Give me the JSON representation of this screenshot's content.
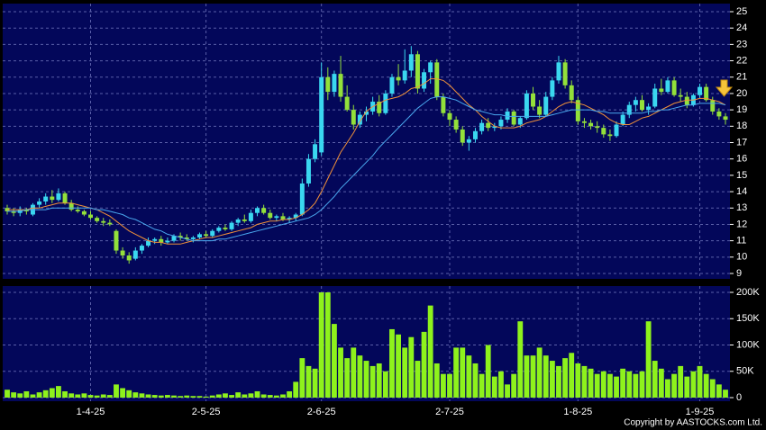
{
  "chart_data": [
    {
      "type": "candlestick",
      "up_color": "#3ad7f0",
      "down_color": "#93e03a",
      "ylim": [
        9,
        25
      ],
      "yticks": [
        9,
        10,
        11,
        12,
        13,
        14,
        15,
        16,
        17,
        18,
        19,
        20,
        21,
        22,
        23,
        24,
        25
      ],
      "grid": true,
      "xticks": [
        {
          "value": 13,
          "label": "1-4-25"
        },
        {
          "value": 31,
          "label": "2-5-25"
        },
        {
          "value": 49,
          "label": "2-6-25"
        },
        {
          "value": 69,
          "label": "2-7-25"
        },
        {
          "value": 89,
          "label": "1-8-25"
        },
        {
          "value": 108,
          "label": "1-9-25"
        }
      ],
      "ohlc": [
        [
          13.0,
          13.2,
          12.6,
          12.8
        ],
        [
          12.8,
          13.0,
          12.5,
          12.7
        ],
        [
          12.7,
          13.1,
          12.5,
          12.9
        ],
        [
          12.9,
          13.0,
          12.6,
          12.8
        ],
        [
          12.6,
          13.3,
          12.5,
          13.2
        ],
        [
          13.2,
          13.6,
          13.0,
          13.4
        ],
        [
          13.4,
          13.9,
          13.2,
          13.7
        ],
        [
          13.7,
          14.1,
          13.3,
          13.5
        ],
        [
          13.5,
          14.2,
          13.4,
          13.9
        ],
        [
          13.9,
          14.0,
          13.2,
          13.3
        ],
        [
          13.3,
          13.5,
          12.8,
          12.9
        ],
        [
          12.9,
          13.1,
          12.7,
          12.8
        ],
        [
          12.8,
          12.9,
          12.5,
          12.6
        ],
        [
          12.6,
          12.8,
          12.3,
          12.4
        ],
        [
          12.4,
          12.5,
          12.1,
          12.2
        ],
        [
          12.2,
          12.4,
          11.9,
          12.1
        ],
        [
          12.1,
          12.3,
          11.9,
          12.0
        ],
        [
          11.6,
          11.7,
          10.2,
          10.4
        ],
        [
          10.4,
          10.6,
          9.9,
          10.1
        ],
        [
          10.1,
          10.3,
          9.6,
          9.8
        ],
        [
          9.9,
          10.6,
          9.8,
          10.4
        ],
        [
          10.4,
          10.8,
          10.2,
          10.7
        ],
        [
          10.7,
          11.2,
          10.6,
          11.0
        ],
        [
          11.0,
          11.2,
          10.8,
          11.1
        ],
        [
          11.1,
          11.3,
          10.7,
          10.9
        ],
        [
          10.9,
          11.2,
          10.8,
          11.0
        ],
        [
          11.0,
          11.4,
          10.9,
          11.3
        ],
        [
          11.3,
          11.5,
          11.0,
          11.2
        ],
        [
          11.2,
          11.4,
          11.0,
          11.1
        ],
        [
          11.1,
          11.3,
          10.9,
          11.2
        ],
        [
          11.2,
          11.5,
          11.1,
          11.4
        ],
        [
          11.4,
          11.6,
          11.2,
          11.3
        ],
        [
          11.3,
          11.7,
          11.2,
          11.6
        ],
        [
          11.6,
          11.9,
          11.5,
          11.8
        ],
        [
          11.8,
          12.0,
          11.6,
          11.7
        ],
        [
          11.7,
          12.2,
          11.6,
          12.1
        ],
        [
          12.1,
          12.4,
          11.9,
          12.3
        ],
        [
          12.3,
          12.6,
          12.1,
          12.2
        ],
        [
          12.2,
          12.9,
          12.1,
          12.7
        ],
        [
          12.7,
          13.1,
          12.5,
          13.0
        ],
        [
          13.0,
          13.2,
          12.6,
          12.7
        ],
        [
          12.7,
          12.9,
          12.3,
          12.4
        ],
        [
          12.4,
          12.6,
          12.2,
          12.5
        ],
        [
          12.5,
          12.7,
          12.2,
          12.3
        ],
        [
          12.3,
          12.5,
          12.1,
          12.4
        ],
        [
          12.4,
          12.7,
          12.2,
          12.6
        ],
        [
          12.6,
          14.8,
          12.5,
          14.5
        ],
        [
          14.5,
          16.3,
          14.3,
          16.0
        ],
        [
          16.0,
          17.2,
          15.8,
          16.9
        ],
        [
          16.4,
          21.9,
          16.2,
          21.0
        ],
        [
          21.0,
          21.6,
          19.6,
          20.1
        ],
        [
          20.1,
          21.4,
          19.8,
          21.2
        ],
        [
          21.2,
          22.3,
          19.5,
          19.8
        ],
        [
          19.8,
          20.5,
          18.9,
          19.0
        ],
        [
          19.0,
          19.3,
          17.8,
          18.1
        ],
        [
          18.1,
          18.9,
          17.9,
          18.7
        ],
        [
          18.7,
          19.2,
          18.3,
          18.9
        ],
        [
          18.9,
          19.8,
          18.7,
          19.5
        ],
        [
          19.5,
          19.9,
          18.6,
          18.8
        ],
        [
          18.8,
          20.2,
          18.7,
          20.0
        ],
        [
          20.0,
          21.2,
          19.8,
          21.0
        ],
        [
          21.0,
          21.8,
          20.5,
          20.8
        ],
        [
          20.8,
          22.7,
          20.6,
          21.4
        ],
        [
          21.4,
          22.9,
          21.0,
          22.4
        ],
        [
          22.4,
          22.6,
          20.0,
          20.3
        ],
        [
          20.3,
          21.5,
          20.1,
          21.3
        ],
        [
          21.3,
          22.0,
          20.6,
          21.9
        ],
        [
          21.9,
          22.1,
          19.6,
          19.8
        ],
        [
          19.8,
          20.0,
          18.6,
          18.8
        ],
        [
          18.8,
          19.0,
          18.0,
          18.4
        ],
        [
          18.4,
          18.6,
          17.6,
          17.8
        ],
        [
          17.8,
          18.0,
          16.8,
          17.0
        ],
        [
          17.0,
          17.4,
          16.5,
          17.2
        ],
        [
          17.2,
          17.9,
          17.0,
          17.7
        ],
        [
          17.7,
          18.4,
          17.5,
          18.2
        ],
        [
          18.2,
          18.5,
          17.7,
          17.9
        ],
        [
          17.9,
          18.2,
          17.7,
          18.0
        ],
        [
          18.0,
          18.6,
          17.8,
          18.4
        ],
        [
          18.4,
          19.1,
          18.2,
          18.9
        ],
        [
          18.9,
          19.0,
          18.0,
          18.1
        ],
        [
          18.1,
          18.6,
          17.9,
          18.5
        ],
        [
          18.5,
          20.2,
          18.4,
          20.0
        ],
        [
          20.0,
          20.4,
          19.0,
          19.2
        ],
        [
          19.2,
          19.6,
          18.5,
          18.7
        ],
        [
          18.7,
          20.1,
          18.6,
          19.8
        ],
        [
          19.8,
          21.0,
          19.6,
          20.8
        ],
        [
          20.8,
          22.3,
          20.6,
          21.9
        ],
        [
          21.9,
          22.1,
          20.3,
          20.5
        ],
        [
          20.5,
          20.8,
          19.4,
          19.6
        ],
        [
          19.6,
          19.8,
          18.1,
          18.3
        ],
        [
          18.3,
          18.5,
          17.9,
          18.2
        ],
        [
          18.2,
          18.4,
          17.8,
          18.0
        ],
        [
          18.0,
          18.3,
          17.6,
          17.9
        ],
        [
          17.9,
          18.1,
          17.3,
          17.5
        ],
        [
          17.5,
          17.8,
          17.1,
          17.4
        ],
        [
          17.4,
          18.3,
          17.3,
          18.1
        ],
        [
          18.1,
          18.9,
          18.0,
          18.7
        ],
        [
          18.7,
          19.5,
          18.5,
          19.3
        ],
        [
          19.3,
          19.8,
          18.9,
          19.6
        ],
        [
          19.6,
          19.9,
          18.9,
          19.0
        ],
        [
          19.0,
          19.4,
          18.7,
          19.2
        ],
        [
          19.2,
          20.6,
          19.1,
          20.3
        ],
        [
          20.3,
          20.9,
          19.9,
          20.1
        ],
        [
          20.1,
          21.0,
          20.0,
          20.8
        ],
        [
          20.8,
          21.0,
          19.8,
          19.9
        ],
        [
          19.9,
          20.3,
          19.5,
          19.8
        ],
        [
          19.8,
          20.1,
          19.1,
          19.3
        ],
        [
          19.3,
          20.0,
          19.2,
          19.9
        ],
        [
          19.9,
          20.6,
          19.7,
          20.4
        ],
        [
          20.4,
          20.6,
          19.5,
          19.6
        ],
        [
          19.6,
          19.8,
          18.7,
          18.9
        ],
        [
          18.9,
          19.1,
          18.4,
          18.6
        ],
        [
          18.6,
          18.8,
          18.1,
          18.4
        ]
      ],
      "ma_lines": [
        {
          "color": "#f0913a",
          "values": [
            12.9,
            12.9,
            12.9,
            12.9,
            13.0,
            13.0,
            13.1,
            13.2,
            13.3,
            13.3,
            13.3,
            13.2,
            13.1,
            13.0,
            12.9,
            12.7,
            12.5,
            12.2,
            11.9,
            11.6,
            11.4,
            11.2,
            11.0,
            10.9,
            10.9,
            10.8,
            10.8,
            10.8,
            10.9,
            11.0,
            11.1,
            11.2,
            11.2,
            11.3,
            11.4,
            11.5,
            11.6,
            11.7,
            11.8,
            12.0,
            12.1,
            12.2,
            12.2,
            12.3,
            12.3,
            12.4,
            12.6,
            12.9,
            13.3,
            14.0,
            14.8,
            15.6,
            16.4,
            17.0,
            17.6,
            18.3,
            18.9,
            19.2,
            19.4,
            19.6,
            19.7,
            19.8,
            20.0,
            20.3,
            20.4,
            20.6,
            20.9,
            20.9,
            20.8,
            20.5,
            20.1,
            19.7,
            19.3,
            19.0,
            18.6,
            18.3,
            18.0,
            17.9,
            17.9,
            17.9,
            18.0,
            18.2,
            18.3,
            18.4,
            18.6,
            18.9,
            19.2,
            19.4,
            19.5,
            19.4,
            19.3,
            19.1,
            18.9,
            18.7,
            18.4,
            18.2,
            18.1,
            18.1,
            18.3,
            18.5,
            18.6,
            18.8,
            19.0,
            19.2,
            19.4,
            19.5,
            19.6,
            19.6,
            19.7,
            19.7,
            19.6,
            19.5,
            19.3
          ]
        },
        {
          "color": "#4aa8ee",
          "values": [
            12.8,
            12.8,
            12.8,
            12.9,
            12.9,
            12.9,
            12.9,
            13.0,
            13.0,
            13.0,
            13.0,
            13.0,
            13.0,
            13.0,
            12.9,
            12.9,
            12.8,
            12.7,
            12.6,
            12.4,
            12.3,
            12.1,
            11.9,
            11.7,
            11.6,
            11.4,
            11.3,
            11.2,
            11.1,
            11.0,
            11.0,
            11.0,
            11.0,
            11.1,
            11.1,
            11.2,
            11.3,
            11.4,
            11.5,
            11.6,
            11.7,
            11.8,
            11.9,
            12.0,
            12.1,
            12.2,
            12.3,
            12.4,
            12.6,
            12.9,
            13.3,
            13.7,
            14.2,
            14.6,
            15.0,
            15.4,
            15.8,
            16.2,
            16.7,
            17.1,
            17.5,
            17.9,
            18.3,
            18.7,
            19.1,
            19.4,
            19.7,
            19.8,
            19.8,
            19.7,
            19.6,
            19.4,
            19.2,
            19.0,
            18.9,
            18.8,
            18.7,
            18.7,
            18.6,
            18.6,
            18.6,
            18.6,
            18.6,
            18.6,
            18.6,
            18.7,
            18.8,
            18.9,
            19.0,
            19.0,
            19.0,
            19.0,
            18.9,
            18.9,
            18.8,
            18.8,
            18.8,
            18.8,
            18.8,
            18.8,
            18.9,
            18.9,
            19.0,
            19.0,
            19.1,
            19.2,
            19.3,
            19.3,
            19.4,
            19.4,
            19.4,
            19.4,
            19.3
          ]
        }
      ]
    },
    {
      "type": "bar",
      "color": "#8ef21c",
      "ylim": [
        0,
        200000
      ],
      "yticks": [
        0,
        {
          "value": 50000,
          "label": "50K"
        },
        {
          "value": 100000,
          "label": "100K"
        },
        {
          "value": 150000,
          "label": "150K"
        },
        {
          "value": 200000,
          "label": "200K"
        }
      ],
      "grid": true,
      "values": [
        15000,
        10000,
        8000,
        12000,
        6000,
        10000,
        14000,
        18000,
        22000,
        12000,
        8000,
        6000,
        8000,
        5000,
        4000,
        6000,
        5000,
        25000,
        18000,
        14000,
        10000,
        8000,
        6000,
        5000,
        4000,
        5000,
        4000,
        3000,
        4000,
        3000,
        3000,
        2000,
        4000,
        6000,
        8000,
        5000,
        10000,
        6000,
        8000,
        12000,
        6000,
        5000,
        4000,
        6000,
        12000,
        30000,
        75000,
        60000,
        55000,
        200000,
        200000,
        140000,
        95000,
        75000,
        95000,
        80000,
        70000,
        60000,
        65000,
        50000,
        130000,
        120000,
        95000,
        115000,
        70000,
        125000,
        175000,
        65000,
        45000,
        45000,
        95000,
        95000,
        80000,
        65000,
        45000,
        100000,
        40000,
        50000,
        25000,
        45000,
        145000,
        80000,
        80000,
        95000,
        80000,
        70000,
        60000,
        75000,
        85000,
        65000,
        60000,
        55000,
        45000,
        50000,
        45000,
        40000,
        55000,
        50000,
        45000,
        50000,
        145000,
        70000,
        55000,
        35000,
        45000,
        60000,
        40000,
        50000,
        60000,
        45000,
        35000,
        25000,
        15000
      ]
    }
  ],
  "copyright": "Copyright by AASTOCKS.com Ltd."
}
